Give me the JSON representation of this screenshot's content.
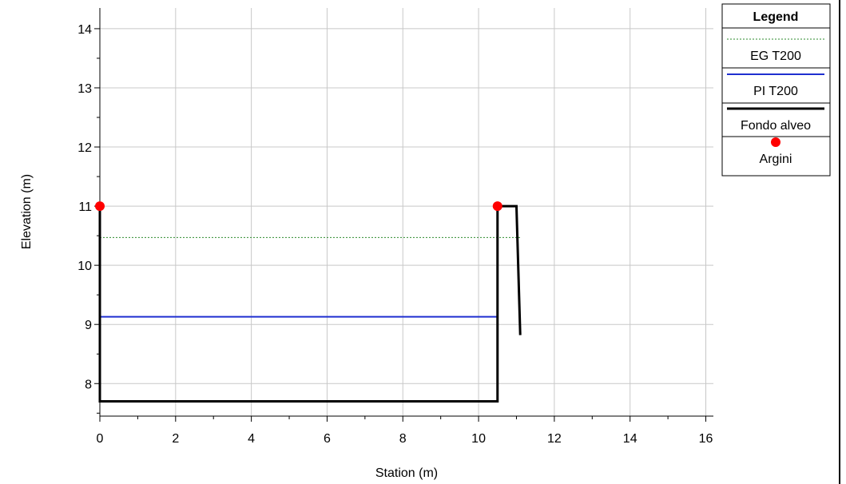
{
  "chart_data": {
    "type": "line",
    "xlabel": "Station (m)",
    "ylabel": "Elevation (m)",
    "xlim": [
      0,
      16.2
    ],
    "ylim": [
      7.45,
      14.35
    ],
    "xticks": [
      0,
      2,
      4,
      6,
      8,
      10,
      12,
      14,
      16
    ],
    "yticks": [
      8,
      9,
      10,
      11,
      12,
      13,
      14
    ],
    "grid": true,
    "legend": {
      "title": "Legend",
      "position": "right"
    },
    "series": [
      {
        "name": "EG T200",
        "color": "#2e8b2e",
        "style": "dashed",
        "x": [
          0,
          11.1
        ],
        "y": [
          10.47,
          10.47
        ]
      },
      {
        "name": "PI T200",
        "color": "#1f2fd0",
        "style": "solid",
        "x": [
          0,
          10.5
        ],
        "y": [
          9.13,
          9.13
        ]
      },
      {
        "name": "Fondo alveo",
        "color": "#000000",
        "style": "solid-thick",
        "x": [
          0,
          0,
          10.5,
          10.5,
          11.0,
          11.1
        ],
        "y": [
          11.0,
          7.7,
          7.7,
          11.0,
          11.0,
          8.82
        ]
      },
      {
        "name": "Argini",
        "color": "#ff0000",
        "style": "marker",
        "x": [
          0,
          10.5
        ],
        "y": [
          11.0,
          11.0
        ]
      }
    ]
  }
}
